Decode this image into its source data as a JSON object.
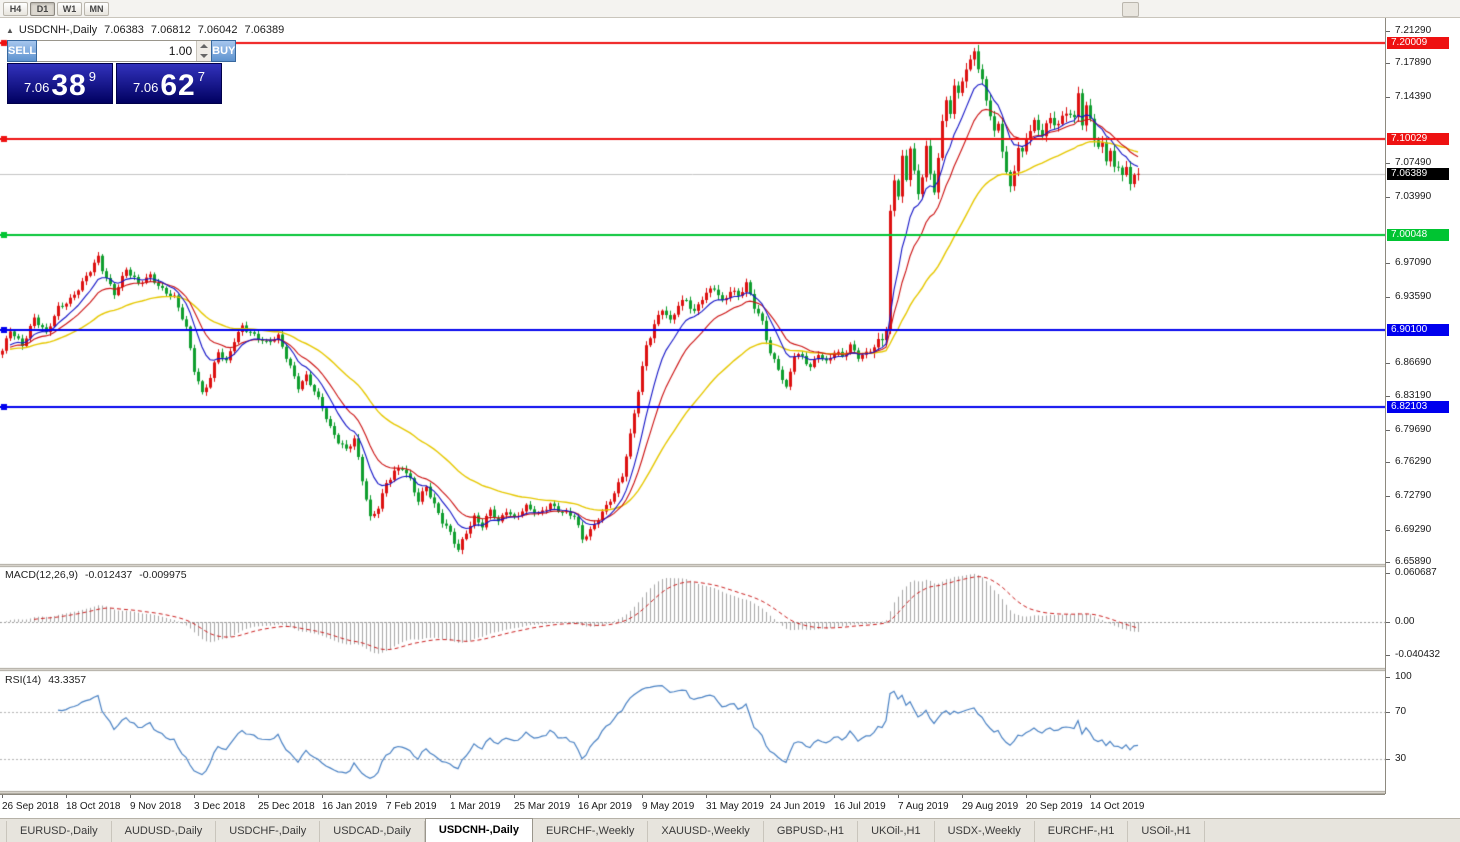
{
  "toolbar": {
    "buttons": [
      "H4",
      "D1",
      "W1",
      "MN"
    ],
    "active": "D1"
  },
  "chart": {
    "title": {
      "symbol": "USDCNH-,Daily",
      "open": "7.06383",
      "high": "7.06812",
      "low": "7.06042",
      "close": "7.06389"
    }
  },
  "one_click": {
    "sell_label": "SELL",
    "buy_label": "BUY",
    "volume": "1.00",
    "sell_price": {
      "prefix": "7.06",
      "big": "38",
      "sup": "9"
    },
    "buy_price": {
      "prefix": "7.06",
      "big": "62",
      "sup": "7"
    }
  },
  "price_scale": {
    "items": [
      {
        "label": "7.21290",
        "price": 7.2129,
        "style": "normal"
      },
      {
        "label": "7.20009",
        "price": 7.20009,
        "style": "level",
        "color": "#ee1111"
      },
      {
        "label": "7.17890",
        "price": 7.1789,
        "style": "normal"
      },
      {
        "label": "7.14390",
        "price": 7.1439,
        "style": "normal"
      },
      {
        "label": "7.10029",
        "price": 7.10029,
        "style": "level",
        "color": "#ee1111"
      },
      {
        "label": "7.07490",
        "price": 7.0749,
        "style": "normal"
      },
      {
        "label": "7.06389",
        "price": 7.06389,
        "style": "current",
        "color": "#000000"
      },
      {
        "label": "7.03990",
        "price": 7.0399,
        "style": "normal"
      },
      {
        "label": "7.00048",
        "price": 7.00048,
        "style": "level",
        "color": "#00c432"
      },
      {
        "label": "6.97090",
        "price": 6.9709,
        "style": "normal"
      },
      {
        "label": "6.93590",
        "price": 6.9359,
        "style": "normal"
      },
      {
        "label": "6.90100",
        "price": 6.901,
        "style": "level",
        "color": "#0000ee"
      },
      {
        "label": "6.86690",
        "price": 6.8669,
        "style": "normal"
      },
      {
        "label": "6.83190",
        "price": 6.8319,
        "style": "normal"
      },
      {
        "label": "6.82103",
        "price": 6.82103,
        "style": "level",
        "color": "#0000ee"
      },
      {
        "label": "6.79690",
        "price": 6.7969,
        "style": "normal"
      },
      {
        "label": "6.76290",
        "price": 6.7629,
        "style": "normal"
      },
      {
        "label": "6.72790",
        "price": 6.7279,
        "style": "normal"
      },
      {
        "label": "6.69290",
        "price": 6.6929,
        "style": "normal"
      },
      {
        "label": "6.65890",
        "price": 6.6589,
        "style": "normal"
      }
    ]
  },
  "macd_panel": {
    "name": "MACD(12,26,9)",
    "value_main": "-0.012437",
    "value_signal": "-0.009975",
    "scale": [
      {
        "label": "0.060687",
        "v": 0.060687
      },
      {
        "label": "0.00",
        "v": 0
      },
      {
        "label": "-0.040432",
        "v": -0.040432
      }
    ]
  },
  "rsi_panel": {
    "name": "RSI(14)",
    "value": "43.3357",
    "levels": [
      70,
      30
    ],
    "scale": [
      {
        "label": "100",
        "v": 100
      },
      {
        "label": "70",
        "v": 70
      },
      {
        "label": "30",
        "v": 30
      }
    ]
  },
  "tabs": {
    "active_index": 4,
    "items": [
      "EURUSD-,Daily",
      "AUDUSD-,Daily",
      "USDCHF-,Daily",
      "USDCAD-,Daily",
      "USDCNH-,Daily",
      "EURCHF-,Weekly",
      "XAUUSD-,Weekly",
      "GBPUSD-,H1",
      "UKOil-,H1",
      "USDX-,Weekly",
      "EURCHF-,H1",
      "USOil-,H1"
    ],
    "active_label": "USDCNH-,Daily"
  },
  "colors": {
    "candle_up": "#dd1111",
    "candle_down": "#0f9e2e",
    "ma_fast": "#1515c8",
    "ma_mid": "#cc1111",
    "ma_slow": "#e6c800",
    "macd_hist": "#a8a8a8",
    "macd_signal": "#cc2222",
    "rsi_line": "#4a82c4",
    "bid_line": "#c4c4c4",
    "grid_dotted": "#b4b4b4"
  },
  "chart_data": {
    "type": "candlestick",
    "symbol": "USDCNH",
    "timeframe": "Daily",
    "current_ohlc": {
      "open": 7.06383,
      "high": 7.06812,
      "low": 7.06042,
      "close": 7.06389
    },
    "y_axis": {
      "min": 6.658,
      "max": 7.218
    },
    "candle_count": 285,
    "candles_per_x_tick": 16,
    "x_tick_labels": [
      "26 Sep 2018",
      "18 Oct 2018",
      "9 Nov 2018",
      "3 Dec 2018",
      "25 Dec 2018",
      "16 Jan 2019",
      "7 Feb 2019",
      "1 Mar 2019",
      "25 Mar 2019",
      "16 Apr 2019",
      "9 May 2019",
      "31 May 2019",
      "24 Jun 2019",
      "16 Jul 2019",
      "7 Aug 2019",
      "29 Aug 2019",
      "20 Sep 2019",
      "14 Oct 2019"
    ],
    "horizontal_levels": [
      {
        "price": 7.20009,
        "label": "7.20009",
        "color": "#ee1111"
      },
      {
        "price": 7.10029,
        "label": "7.10029",
        "color": "#ee1111"
      },
      {
        "price": 7.00048,
        "label": "7.00048",
        "color": "#00c432"
      },
      {
        "price": 6.901,
        "label": "6.90100",
        "color": "#0000ee"
      },
      {
        "price": 6.82103,
        "label": "6.82103",
        "color": "#0000ee"
      }
    ],
    "moving_averages": [
      {
        "name": "fast",
        "period": 9,
        "color": "#1515c8"
      },
      {
        "name": "medium",
        "period": 16,
        "color": "#cc1111"
      },
      {
        "name": "slow",
        "period": 40,
        "color": "#e6c800"
      }
    ],
    "indicators": [
      {
        "name": "MACD",
        "params": [
          12,
          26,
          9
        ],
        "main": -0.012437,
        "signal": -0.009975,
        "scale_max": 0.060687,
        "scale_min": -0.040432
      },
      {
        "name": "RSI",
        "params": [
          14
        ],
        "value": 43.3357,
        "levels": [
          70,
          30
        ]
      }
    ],
    "close_anchors": [
      [
        0,
        6.878
      ],
      [
        2,
        6.9
      ],
      [
        5,
        6.886
      ],
      [
        8,
        6.914
      ],
      [
        11,
        6.896
      ],
      [
        14,
        6.924
      ],
      [
        17,
        6.934
      ],
      [
        20,
        6.95
      ],
      [
        22,
        6.962
      ],
      [
        24,
        6.976
      ],
      [
        25,
        6.964
      ],
      [
        28,
        6.94
      ],
      [
        31,
        6.964
      ],
      [
        34,
        6.948
      ],
      [
        37,
        6.958
      ],
      [
        40,
        6.944
      ],
      [
        43,
        6.934
      ],
      [
        46,
        6.902
      ],
      [
        48,
        6.86
      ],
      [
        50,
        6.836
      ],
      [
        52,
        6.852
      ],
      [
        54,
        6.878
      ],
      [
        56,
        6.866
      ],
      [
        58,
        6.89
      ],
      [
        60,
        6.906
      ],
      [
        63,
        6.896
      ],
      [
        66,
        6.886
      ],
      [
        69,
        6.894
      ],
      [
        72,
        6.864
      ],
      [
        74,
        6.842
      ],
      [
        76,
        6.852
      ],
      [
        78,
        6.836
      ],
      [
        80,
        6.82
      ],
      [
        82,
        6.8
      ],
      [
        84,
        6.786
      ],
      [
        86,
        6.776
      ],
      [
        88,
        6.786
      ],
      [
        90,
        6.744
      ],
      [
        92,
        6.705
      ],
      [
        94,
        6.718
      ],
      [
        96,
        6.742
      ],
      [
        98,
        6.752
      ],
      [
        100,
        6.756
      ],
      [
        102,
        6.744
      ],
      [
        104,
        6.724
      ],
      [
        106,
        6.74
      ],
      [
        108,
        6.718
      ],
      [
        110,
        6.7
      ],
      [
        112,
        6.688
      ],
      [
        114,
        6.672
      ],
      [
        116,
        6.692
      ],
      [
        118,
        6.706
      ],
      [
        120,
        6.696
      ],
      [
        122,
        6.712
      ],
      [
        124,
        6.7
      ],
      [
        126,
        6.714
      ],
      [
        128,
        6.706
      ],
      [
        131,
        6.716
      ],
      [
        134,
        6.708
      ],
      [
        137,
        6.72
      ],
      [
        140,
        6.712
      ],
      [
        143,
        6.706
      ],
      [
        145,
        6.682
      ],
      [
        147,
        6.692
      ],
      [
        149,
        6.706
      ],
      [
        151,
        6.718
      ],
      [
        153,
        6.73
      ],
      [
        155,
        6.748
      ],
      [
        157,
        6.79
      ],
      [
        159,
        6.84
      ],
      [
        161,
        6.886
      ],
      [
        163,
        6.906
      ],
      [
        165,
        6.922
      ],
      [
        167,
        6.908
      ],
      [
        169,
        6.928
      ],
      [
        171,
        6.934
      ],
      [
        173,
        6.92
      ],
      [
        175,
        6.934
      ],
      [
        178,
        6.944
      ],
      [
        180,
        6.93
      ],
      [
        182,
        6.944
      ],
      [
        184,
        6.938
      ],
      [
        186,
        6.948
      ],
      [
        188,
        6.924
      ],
      [
        190,
        6.908
      ],
      [
        192,
        6.878
      ],
      [
        194,
        6.862
      ],
      [
        196,
        6.84
      ],
      [
        198,
        6.874
      ],
      [
        200,
        6.872
      ],
      [
        202,
        6.862
      ],
      [
        204,
        6.878
      ],
      [
        206,
        6.868
      ],
      [
        208,
        6.878
      ],
      [
        210,
        6.872
      ],
      [
        212,
        6.884
      ],
      [
        214,
        6.874
      ],
      [
        216,
        6.878
      ],
      [
        218,
        6.884
      ],
      [
        220,
        6.89
      ],
      [
        221,
        6.902
      ],
      [
        222,
        7.02
      ],
      [
        223,
        7.056
      ],
      [
        224,
        7.044
      ],
      [
        225,
        7.082
      ],
      [
        226,
        7.058
      ],
      [
        227,
        7.096
      ],
      [
        228,
        7.068
      ],
      [
        229,
        7.04
      ],
      [
        230,
        7.062
      ],
      [
        231,
        7.092
      ],
      [
        232,
        7.058
      ],
      [
        233,
        7.044
      ],
      [
        234,
        7.082
      ],
      [
        235,
        7.116
      ],
      [
        236,
        7.142
      ],
      [
        237,
        7.132
      ],
      [
        238,
        7.156
      ],
      [
        239,
        7.148
      ],
      [
        240,
        7.164
      ],
      [
        242,
        7.178
      ],
      [
        243,
        7.192
      ],
      [
        244,
        7.172
      ],
      [
        245,
        7.158
      ],
      [
        246,
        7.142
      ],
      [
        247,
        7.128
      ],
      [
        248,
        7.108
      ],
      [
        249,
        7.118
      ],
      [
        250,
        7.092
      ],
      [
        251,
        7.064
      ],
      [
        252,
        7.048
      ],
      [
        253,
        7.068
      ],
      [
        254,
        7.088
      ],
      [
        255,
        7.082
      ],
      [
        256,
        7.102
      ],
      [
        258,
        7.118
      ],
      [
        260,
        7.108
      ],
      [
        262,
        7.122
      ],
      [
        264,
        7.112
      ],
      [
        266,
        7.128
      ],
      [
        268,
        7.12
      ],
      [
        269,
        7.152
      ],
      [
        270,
        7.118
      ],
      [
        271,
        7.134
      ],
      [
        272,
        7.124
      ],
      [
        273,
        7.102
      ],
      [
        274,
        7.088
      ],
      [
        275,
        7.094
      ],
      [
        276,
        7.078
      ],
      [
        277,
        7.084
      ],
      [
        278,
        7.068
      ],
      [
        279,
        7.074
      ],
      [
        280,
        7.064
      ],
      [
        281,
        7.07
      ],
      [
        282,
        7.058
      ],
      [
        283,
        7.066
      ],
      [
        284,
        7.064
      ]
    ]
  }
}
